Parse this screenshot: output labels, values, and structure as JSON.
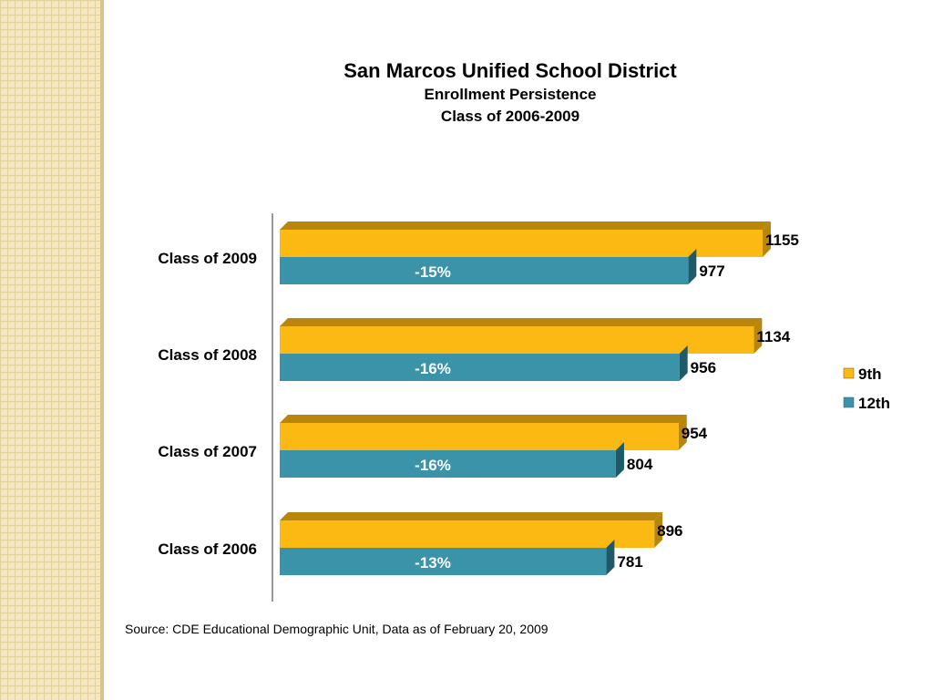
{
  "titles": {
    "title": "San Marcos Unified School District",
    "subtitle1": "Enrollment Persistence",
    "subtitle2": "Class of 2006-2009"
  },
  "source": "Source: CDE  Educational Demographic Unit, Data as of February 20, 2009",
  "colors": {
    "ninth": "#fdb913",
    "ninth_dark": "#b8860b",
    "twelfth": "#3a93a8",
    "twelfth_dark": "#1f5a68"
  },
  "chart_data": {
    "type": "bar",
    "orientation": "horizontal",
    "style": "3d",
    "categories": [
      "Class of 2009",
      "Class of 2008",
      "Class of 2007",
      "Class of 2006"
    ],
    "series": [
      {
        "name": "9th",
        "values": [
          1155,
          1134,
          954,
          896
        ]
      },
      {
        "name": "12th",
        "values": [
          977,
          956,
          804,
          781
        ]
      }
    ],
    "percent_labels": [
      "-15%",
      "-16%",
      "-16%",
      "-13%"
    ],
    "legend_position": "right",
    "grid": false
  }
}
